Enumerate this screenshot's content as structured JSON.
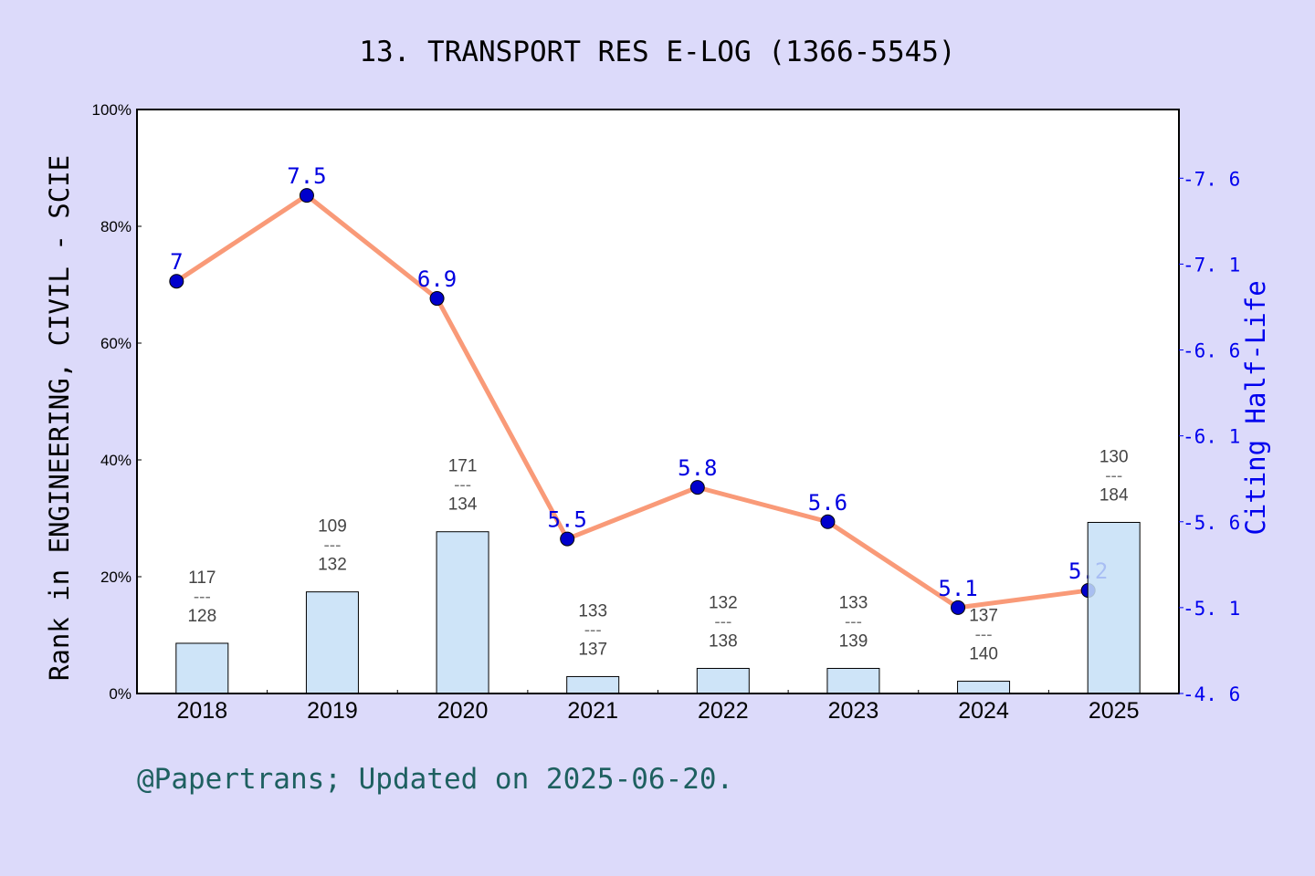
{
  "chart_data": {
    "type": "bar+line",
    "title": "13. TRANSPORT RES E-LOG (1366-5545)",
    "categories": [
      "2018",
      "2019",
      "2020",
      "2021",
      "2022",
      "2023",
      "2024",
      "2025"
    ],
    "ylabel_left": "Rank in ENGINEERING, CIVIL - SCIE",
    "ylabel_right": "Citing Half-Life",
    "ylim_left": [
      0,
      100
    ],
    "ylim_right": [
      4.6,
      8.0
    ],
    "left_ticks": [
      "0%",
      "20%",
      "40%",
      "60%",
      "80%",
      "100%"
    ],
    "right_ticks": [
      "4.6",
      "5.1",
      "5.6",
      "6.1",
      "6.6",
      "7.1",
      "7.6"
    ],
    "bars": {
      "values_percent": [
        8.6,
        17.4,
        27.7,
        2.9,
        4.3,
        4.3,
        2.1,
        29.3
      ],
      "rank_labels": [
        [
          "117",
          "128"
        ],
        [
          "109",
          "132"
        ],
        [
          "171",
          "134"
        ],
        [
          "133",
          "137"
        ],
        [
          "132",
          "138"
        ],
        [
          "133",
          "139"
        ],
        [
          "137",
          "140"
        ],
        [
          "130",
          "184"
        ]
      ],
      "color": "#c5dff7"
    },
    "line": {
      "values": [
        7,
        7.5,
        6.9,
        5.5,
        5.8,
        5.6,
        5.1,
        5.2
      ],
      "labels": [
        "7",
        "7.5",
        "6.9",
        "5.5",
        "5.8",
        "5.6",
        "5.1",
        "5.2"
      ],
      "line_color": "#f99a78",
      "marker_color": "#0000cc"
    },
    "grid": false
  },
  "footer": "@Papertrans; Updated on 2025-06-20."
}
